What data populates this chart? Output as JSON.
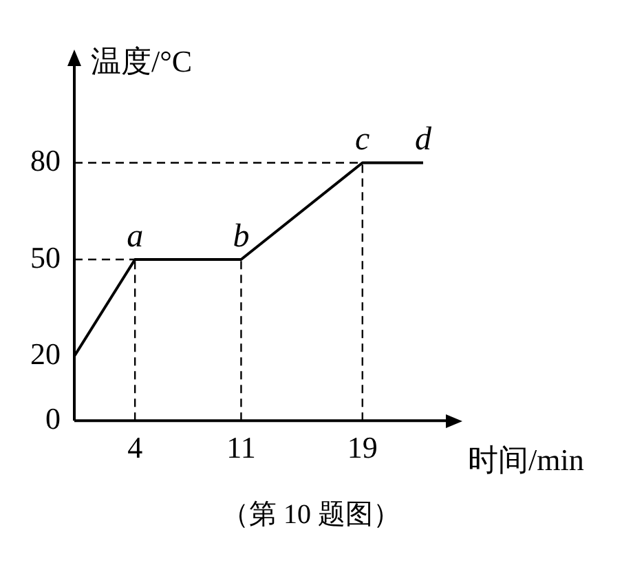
{
  "chart_data": {
    "type": "line",
    "xlabel": "时间/min",
    "ylabel": "温度/°C",
    "x": [
      0,
      4,
      11,
      19,
      23
    ],
    "values": [
      20,
      50,
      50,
      80,
      80
    ],
    "color": "#000000",
    "marker": "none",
    "line_style": "solid",
    "grid": false,
    "legend": false,
    "xlim": [
      0,
      24.5
    ],
    "xticks": [
      4,
      11,
      19
    ],
    "ylim": [
      0,
      110
    ],
    "yticks": [
      0,
      20,
      50,
      80
    ],
    "ref_lines": [
      {
        "axis": "x",
        "value": 4,
        "line_style": "dashed"
      },
      {
        "axis": "x",
        "value": 11,
        "line_style": "dashed"
      },
      {
        "axis": "x",
        "value": 19,
        "line_style": "dashed"
      },
      {
        "axis": "y",
        "value": 50,
        "line_style": "dashed"
      },
      {
        "axis": "y",
        "value": 80,
        "line_style": "dashed"
      }
    ],
    "annotations": [
      {
        "text": "a",
        "x": 4,
        "y": 50
      },
      {
        "text": "b",
        "x": 11,
        "y": 50
      },
      {
        "text": "c",
        "x": 19,
        "y": 80
      },
      {
        "text": "d",
        "x": 23,
        "y": 80
      },
      "（第 10 题图）"
    ]
  }
}
